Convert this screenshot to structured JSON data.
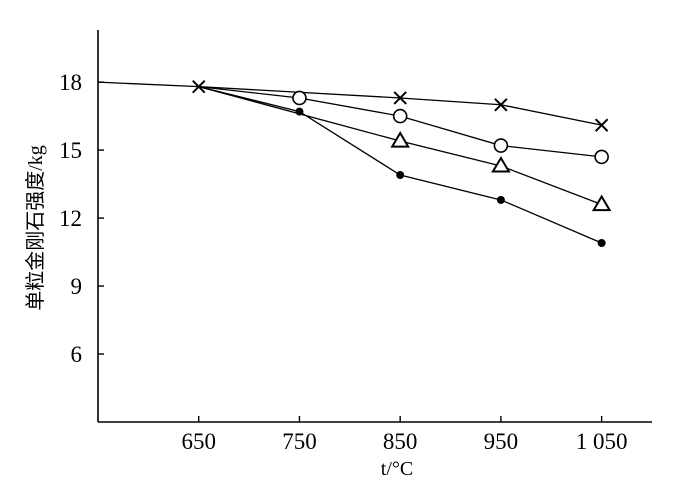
{
  "chart_data": {
    "type": "line",
    "title": "",
    "xlabel": "t/°C",
    "ylabel": "单粒金刚石强度/kg",
    "xlim": [
      550,
      1100
    ],
    "ylim": [
      3,
      20.3
    ],
    "x_ticks": [
      650,
      750,
      850,
      950,
      1050
    ],
    "x_tick_labels": [
      "650",
      "750",
      "850",
      "950",
      "1 050"
    ],
    "y_ticks": [
      6,
      9,
      12,
      15,
      18
    ],
    "y_tick_labels": [
      "6",
      "9",
      "12",
      "15",
      "18"
    ],
    "grid": false,
    "legend": "none",
    "lead_in": {
      "x": [
        550,
        650
      ],
      "y": [
        18.0,
        17.8
      ]
    },
    "series": [
      {
        "marker": "x",
        "x": [
          650,
          850,
          950,
          1050
        ],
        "y": [
          17.8,
          17.3,
          17.0,
          16.1
        ]
      },
      {
        "marker": "circle",
        "x": [
          650,
          750,
          850,
          950,
          1050
        ],
        "y": [
          17.8,
          17.3,
          16.5,
          15.2,
          14.7
        ]
      },
      {
        "marker": "triangle",
        "x": [
          650,
          850,
          950,
          1050
        ],
        "y": [
          17.8,
          15.4,
          14.3,
          12.6
        ]
      },
      {
        "marker": "dot",
        "x": [
          650,
          750,
          850,
          950,
          1050
        ],
        "y": [
          17.8,
          16.7,
          13.9,
          12.8,
          10.9
        ]
      }
    ]
  }
}
